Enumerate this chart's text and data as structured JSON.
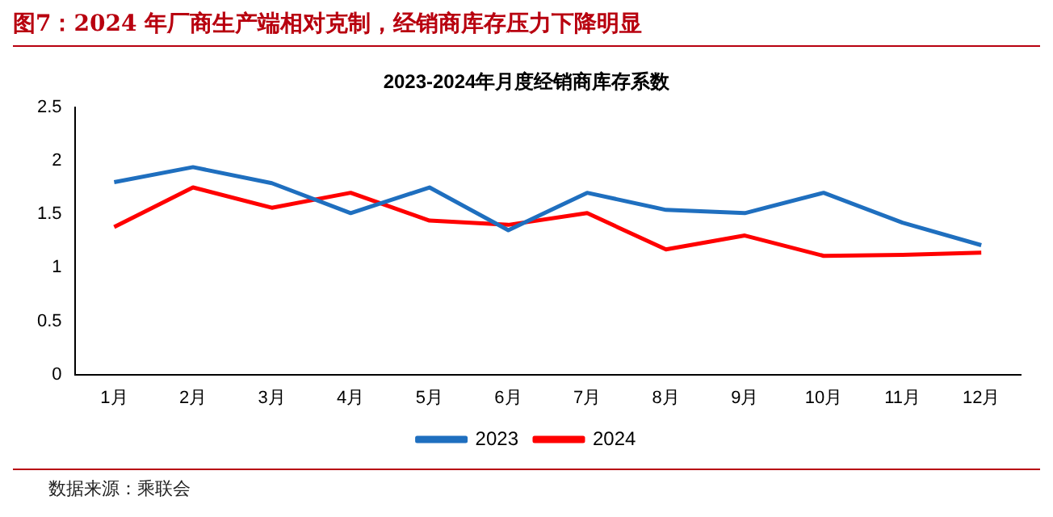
{
  "chart_data": {
    "type": "line",
    "title": "图7：2024 年厂商生产端相对克制，经销商库存压力下降明显",
    "subtitle": "2023-2024年月度经销商库存系数",
    "categories": [
      "1月",
      "2月",
      "3月",
      "4月",
      "5月",
      "6月",
      "7月",
      "8月",
      "9月",
      "10月",
      "11月",
      "12月"
    ],
    "series": [
      {
        "name": "2023",
        "color": "#1f6fbf",
        "values": [
          1.8,
          1.94,
          1.79,
          1.51,
          1.75,
          1.35,
          1.7,
          1.54,
          1.51,
          1.7,
          1.42,
          1.21
        ]
      },
      {
        "name": "2024",
        "color": "#ff0000",
        "values": [
          1.38,
          1.75,
          1.56,
          1.7,
          1.44,
          1.4,
          1.51,
          1.17,
          1.3,
          1.11,
          1.12,
          1.14
        ]
      }
    ],
    "ylim": [
      0,
      2.5
    ],
    "yticks": [
      0,
      0.5,
      1,
      1.5,
      2,
      2.5
    ],
    "grid": false,
    "legend": "bottom",
    "marker": "none",
    "line_style": "solid",
    "annotations": [
      "数据来源：乘联会"
    ]
  }
}
